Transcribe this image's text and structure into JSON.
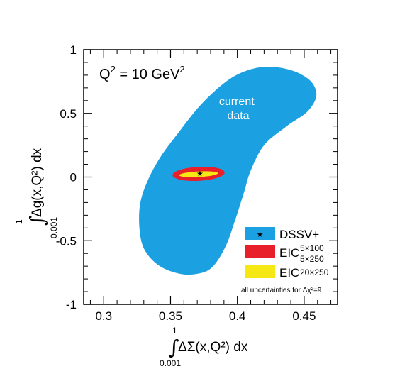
{
  "chart_data": {
    "type": "scatter",
    "title": "Q² = 10 GeV²",
    "xlabel": {
      "integral_upper": "1",
      "integral_lower": "0.001",
      "expression": "ΔΣ(x,Q²) dx"
    },
    "ylabel": {
      "integral_upper": "1",
      "integral_lower": "0.001",
      "expression": "Δg(x,Q²) dx"
    },
    "xlim": [
      0.285,
      0.475
    ],
    "ylim": [
      -1,
      1
    ],
    "xticks": [
      "0.3",
      "0.35",
      "0.4",
      "0.45"
    ],
    "xtick_values": [
      0.3,
      0.35,
      0.4,
      0.45
    ],
    "yticks": [
      "1",
      "0.5",
      "0",
      "-0.5",
      "-1"
    ],
    "ytick_values": [
      1,
      0.5,
      0,
      -0.5,
      -1
    ],
    "grid": false,
    "legend_position": "bottom-right",
    "regions": [
      {
        "name": "current data",
        "label": "current\ndata",
        "color": "#1ba1e2",
        "outline": [
          [
            0.357,
            -0.76
          ],
          [
            0.342,
            -0.7
          ],
          [
            0.331,
            -0.58
          ],
          [
            0.327,
            -0.43
          ],
          [
            0.327,
            -0.23
          ],
          [
            0.332,
            -0.05
          ],
          [
            0.342,
            0.15
          ],
          [
            0.356,
            0.35
          ],
          [
            0.372,
            0.56
          ],
          [
            0.388,
            0.72
          ],
          [
            0.401,
            0.81
          ],
          [
            0.416,
            0.86
          ],
          [
            0.431,
            0.86
          ],
          [
            0.445,
            0.82
          ],
          [
            0.456,
            0.74
          ],
          [
            0.459,
            0.63
          ],
          [
            0.452,
            0.51
          ],
          [
            0.437,
            0.4
          ],
          [
            0.42,
            0.25
          ],
          [
            0.41,
            0.05
          ],
          [
            0.405,
            -0.12
          ],
          [
            0.398,
            -0.35
          ],
          [
            0.391,
            -0.55
          ],
          [
            0.381,
            -0.71
          ],
          [
            0.37,
            -0.76
          ]
        ]
      },
      {
        "name": "EIC 5×100 5×250",
        "color": "#e8202a",
        "center": [
          0.371,
          0.025
        ],
        "radii": [
          0.0195,
          0.055
        ]
      },
      {
        "name": "EIC 20×250",
        "color": "#f5e815",
        "center": [
          0.371,
          0.022
        ],
        "radii": [
          0.0145,
          0.022
        ]
      }
    ],
    "points": [
      {
        "name": "DSSV+",
        "x": 0.372,
        "y": 0.027,
        "marker": "star"
      }
    ],
    "legend": {
      "entries": [
        {
          "label": "DSSV+",
          "sub_top": "",
          "sub_bottom": "",
          "color": "#1ba1e2",
          "marker": "★"
        },
        {
          "label": "EIC",
          "sub_top": "5×100",
          "sub_bottom": "5×250",
          "color": "#e8202a",
          "marker": ""
        },
        {
          "label": "EIC",
          "sub_top": "",
          "sub_bottom": "20×250",
          "color": "#f5e815",
          "marker": ""
        }
      ],
      "note": "all uncertainties for Δχ²=9"
    },
    "title_text": {
      "q": "Q",
      "q_exp": "2",
      "mid": " = 10 GeV",
      "gev_exp": "2"
    }
  }
}
